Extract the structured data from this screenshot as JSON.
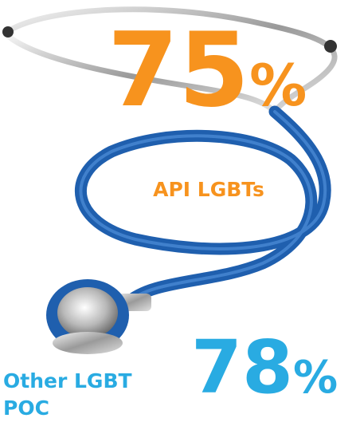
{
  "stats": [
    {
      "value": "75",
      "unit": "%",
      "label": "API LGBTs"
    },
    {
      "value": "78",
      "unit": "%",
      "label_lines": [
        "Other LGBT",
        "POC"
      ]
    }
  ]
}
